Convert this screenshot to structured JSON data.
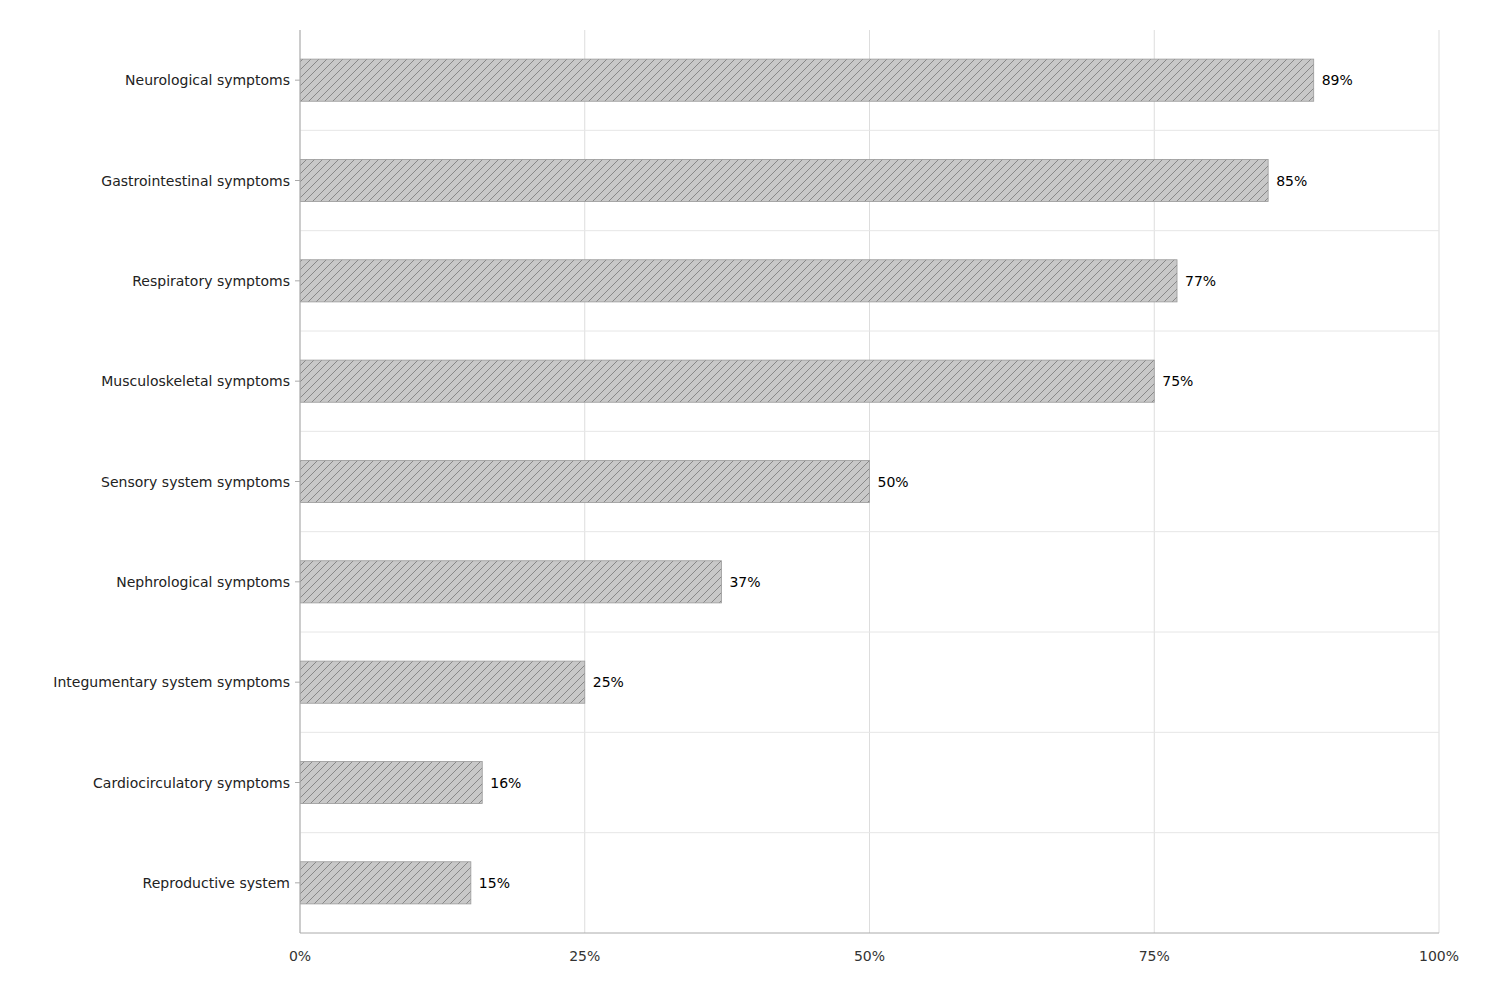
{
  "chart_data": {
    "type": "bar",
    "orientation": "horizontal",
    "categories": [
      "Reproductive system",
      "Cardiocirculatory symptoms",
      "Integumentary system symptoms",
      "Nephrological symptoms",
      "Sensory system symptoms",
      "Musculoskeletal symptoms",
      "Respiratory symptoms",
      "Gastrointestinal symptoms",
      "Neurological symptoms"
    ],
    "values": [
      15,
      16,
      25,
      37,
      50,
      75,
      77,
      85,
      89
    ],
    "value_labels": [
      "15%",
      "16%",
      "25%",
      "37%",
      "50%",
      "75%",
      "77%",
      "85%",
      "89%"
    ],
    "data_labels": true,
    "color": "#c8c8c8",
    "xlim": [
      0,
      100
    ],
    "xticks": [
      {
        "value": 0,
        "label": "0%"
      },
      {
        "value": 25,
        "label": "25%"
      },
      {
        "value": 50,
        "label": "50%"
      },
      {
        "value": 75,
        "label": "75%"
      },
      {
        "value": 100,
        "label": "100%"
      }
    ],
    "grid": true
  }
}
